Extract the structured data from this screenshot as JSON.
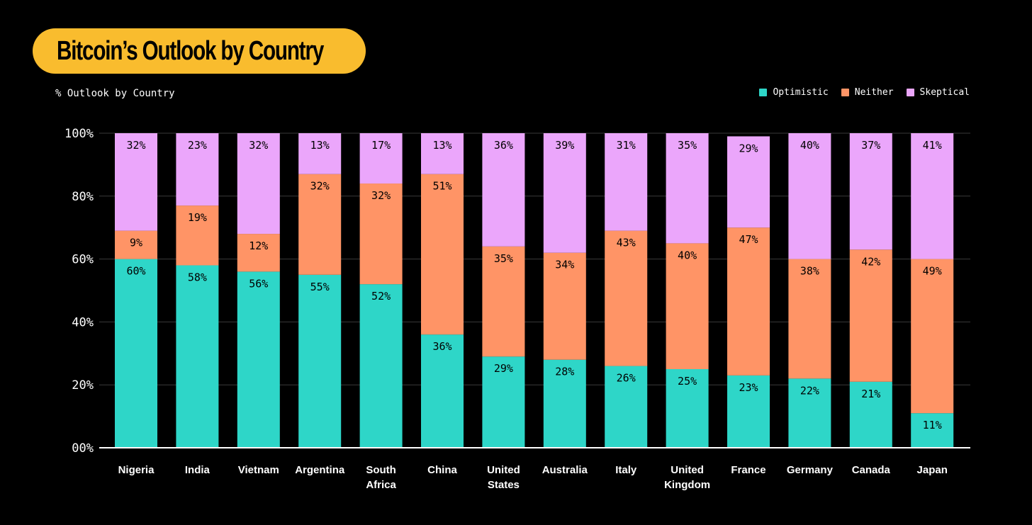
{
  "chart_data": {
    "type": "bar",
    "stacked": true,
    "title": "Bitcoin’s Outlook by Country",
    "subtitle": "% Outlook by Country",
    "ylabel": "",
    "xlabel": "",
    "ylim": [
      0,
      100
    ],
    "yticks": [
      0,
      20,
      40,
      60,
      80,
      100
    ],
    "ytick_labels": [
      "00%",
      "20%",
      "40%",
      "60%",
      "80%",
      "100%"
    ],
    "categories": [
      [
        "Nigeria"
      ],
      [
        "India"
      ],
      [
        "Vietnam"
      ],
      [
        "Argentina"
      ],
      [
        "South",
        "Africa"
      ],
      [
        "China"
      ],
      [
        "United",
        "States"
      ],
      [
        "Australia"
      ],
      [
        "Italy"
      ],
      [
        "United",
        "Kingdom"
      ],
      [
        "France"
      ],
      [
        "Germany"
      ],
      [
        "Canada"
      ],
      [
        "Japan"
      ]
    ],
    "series": [
      {
        "name": "Optimistic",
        "color": "#2ED6C8",
        "values": [
          60,
          58,
          56,
          55,
          52,
          36,
          29,
          28,
          26,
          25,
          23,
          22,
          21,
          11
        ]
      },
      {
        "name": "Neither",
        "color": "#FF9466",
        "values": [
          9,
          19,
          12,
          32,
          32,
          51,
          35,
          34,
          43,
          40,
          47,
          38,
          42,
          49
        ]
      },
      {
        "name": "Skeptical",
        "color": "#EBA6FB",
        "values": [
          32,
          23,
          32,
          13,
          17,
          13,
          36,
          39,
          31,
          35,
          29,
          40,
          37,
          41
        ]
      }
    ],
    "legend_position": "top-right",
    "grid": true
  },
  "colors": {
    "background": "#000000",
    "title_pill": "#F9BC2E",
    "grid": "#3a3a3a",
    "axis": "#ffffff"
  }
}
